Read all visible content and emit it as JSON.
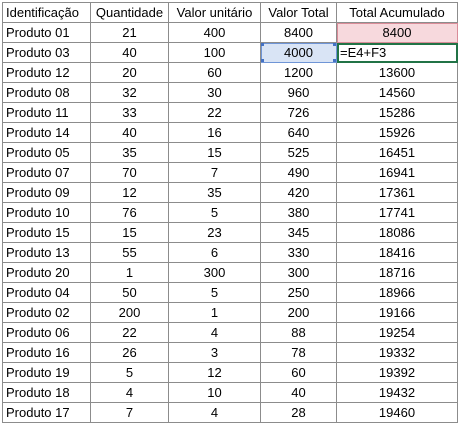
{
  "sheet": {
    "headers": [
      "Identificação",
      "Quantidade",
      "Valor unitário",
      "Valor Total",
      "Total Acumulado"
    ],
    "rows": [
      [
        "Produto 01",
        "21",
        "400",
        "8400",
        "8400"
      ],
      [
        "Produto 03",
        "40",
        "100",
        "4000",
        "=E4+F3"
      ],
      [
        "Produto 12",
        "20",
        "60",
        "1200",
        "13600"
      ],
      [
        "Produto 08",
        "32",
        "30",
        "960",
        "14560"
      ],
      [
        "Produto 11",
        "33",
        "22",
        "726",
        "15286"
      ],
      [
        "Produto 14",
        "40",
        "16",
        "640",
        "15926"
      ],
      [
        "Produto 05",
        "35",
        "15",
        "525",
        "16451"
      ],
      [
        "Produto 07",
        "70",
        "7",
        "490",
        "16941"
      ],
      [
        "Produto 09",
        "12",
        "35",
        "420",
        "17361"
      ],
      [
        "Produto 10",
        "76",
        "5",
        "380",
        "17741"
      ],
      [
        "Produto 15",
        "15",
        "23",
        "345",
        "18086"
      ],
      [
        "Produto 13",
        "55",
        "6",
        "330",
        "18416"
      ],
      [
        "Produto 20",
        "1",
        "300",
        "300",
        "18716"
      ],
      [
        "Produto 04",
        "50",
        "5",
        "250",
        "18966"
      ],
      [
        "Produto 02",
        "200",
        "1",
        "200",
        "19166"
      ],
      [
        "Produto 06",
        "22",
        "4",
        "88",
        "19254"
      ],
      [
        "Produto 16",
        "26",
        "3",
        "78",
        "19332"
      ],
      [
        "Produto 19",
        "5",
        "12",
        "60",
        "19392"
      ],
      [
        "Produto 18",
        "4",
        "10",
        "40",
        "19432"
      ],
      [
        "Produto 17",
        "7",
        "4",
        "28",
        "19460"
      ]
    ]
  },
  "colors": {
    "grid": "#8c8c8c",
    "ref_red_fill": "#f7d9dd",
    "ref_blue_fill": "#d9e4f5",
    "active_border": "#217346"
  }
}
